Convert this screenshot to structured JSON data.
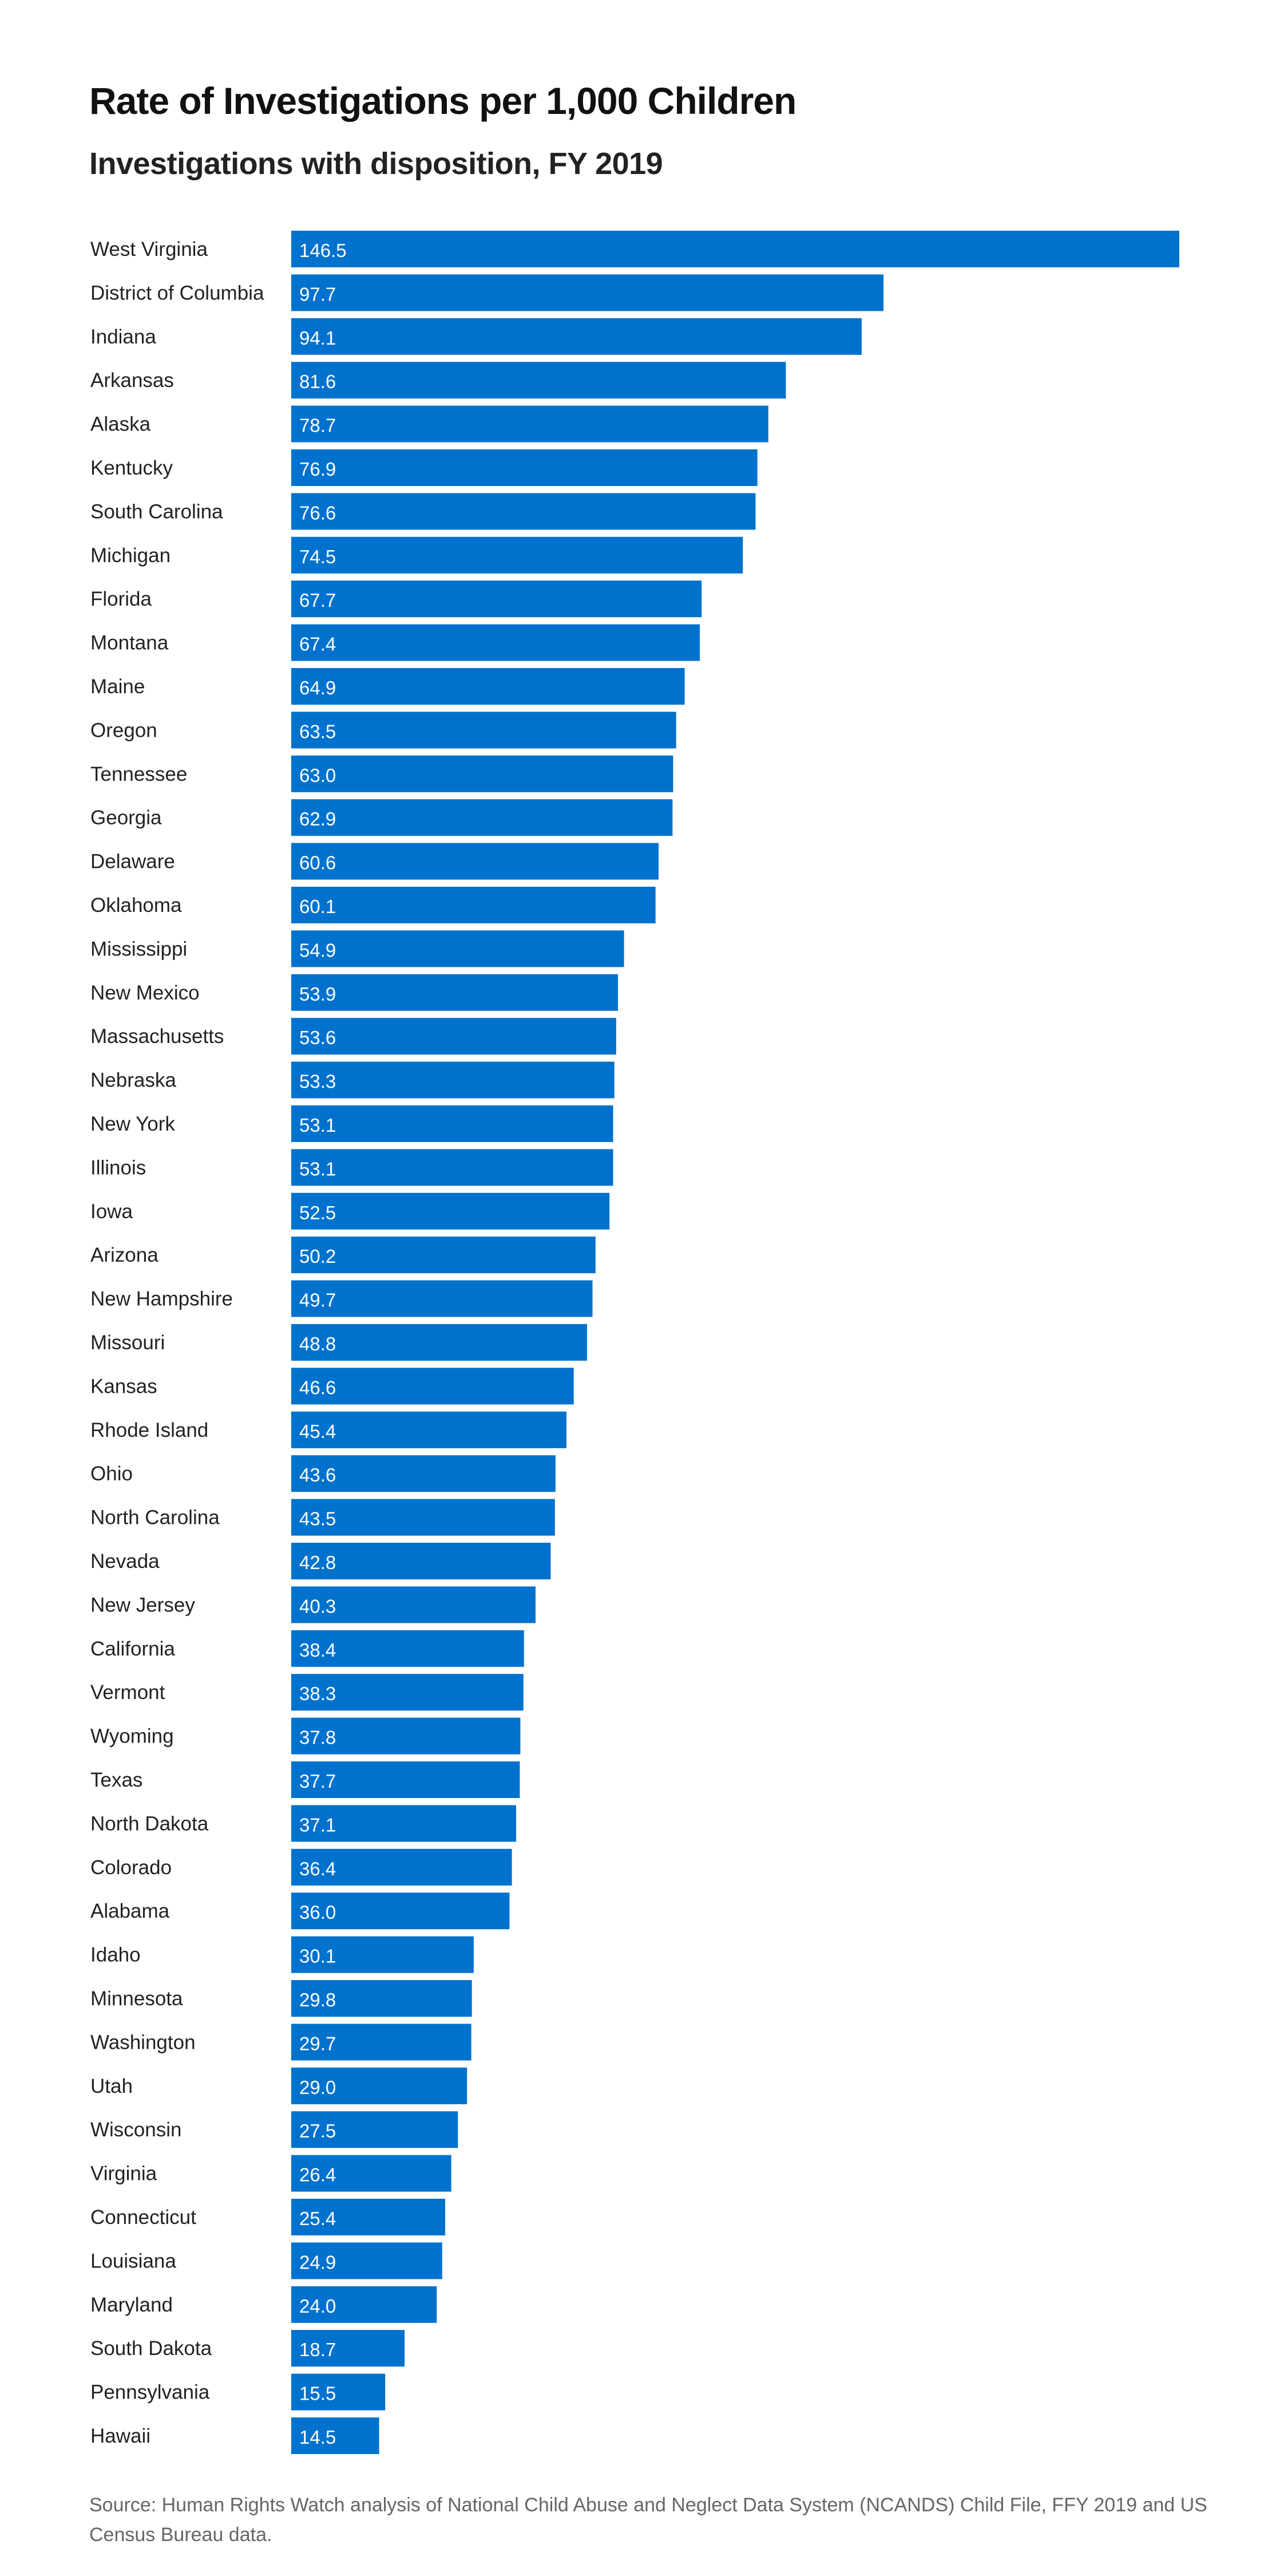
{
  "chart_data": {
    "type": "bar",
    "orientation": "horizontal",
    "title": "Rate of Investigations per 1,000 Children",
    "subtitle": "Investigations with disposition, FY 2019",
    "xlabel": "",
    "ylabel": "",
    "xlim": [
      0,
      146.5
    ],
    "grid": false,
    "bar_color": "#0072CE",
    "categories": [
      "West Virginia",
      "District of Columbia",
      "Indiana",
      "Arkansas",
      "Alaska",
      "Kentucky",
      "South Carolina",
      "Michigan",
      "Florida",
      "Montana",
      "Maine",
      "Oregon",
      "Tennessee",
      "Georgia",
      "Delaware",
      "Oklahoma",
      "Mississippi",
      "New Mexico",
      "Massachusetts",
      "Nebraska",
      "New York",
      "Illinois",
      "Iowa",
      "Arizona",
      "New Hampshire",
      "Missouri",
      "Kansas",
      "Rhode Island",
      "Ohio",
      "North Carolina",
      "Nevada",
      "New Jersey",
      "California",
      "Vermont",
      "Wyoming",
      "Texas",
      "North Dakota",
      "Colorado",
      "Alabama",
      "Idaho",
      "Minnesota",
      "Washington",
      "Utah",
      "Wisconsin",
      "Virginia",
      "Connecticut",
      "Louisiana",
      "Maryland",
      "South Dakota",
      "Pennsylvania",
      "Hawaii"
    ],
    "values": [
      146.5,
      97.7,
      94.1,
      81.6,
      78.7,
      76.9,
      76.6,
      74.5,
      67.7,
      67.4,
      64.9,
      63.5,
      63.0,
      62.9,
      60.6,
      60.1,
      54.9,
      53.9,
      53.6,
      53.3,
      53.1,
      53.1,
      52.5,
      50.2,
      49.7,
      48.8,
      46.6,
      45.4,
      43.6,
      43.5,
      42.8,
      40.3,
      38.4,
      38.3,
      37.8,
      37.7,
      37.1,
      36.4,
      36.0,
      30.1,
      29.8,
      29.7,
      29.0,
      27.5,
      26.4,
      25.4,
      24.9,
      24.0,
      18.7,
      15.5,
      14.5
    ],
    "source": "Source: Human Rights Watch analysis of National Child Abuse and Neglect Data System (NCANDS) Child File, FFY 2019 and US Census Bureau data."
  }
}
